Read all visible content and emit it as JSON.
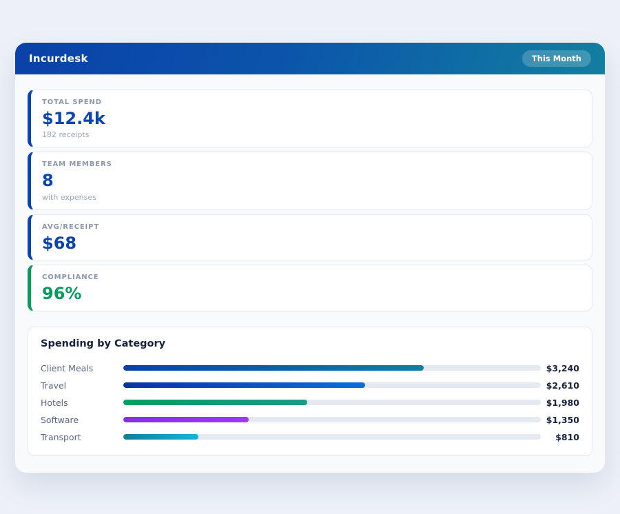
{
  "app": {
    "title": "Incurdesk",
    "period_badge": "This Month",
    "theme": {
      "header_gradient_start": "#0a41a8",
      "header_gradient_end": "#127f9f",
      "page_background": "#edf1f7",
      "panel_background": "#f8fafc",
      "accent_blue": "#0a44b0",
      "accent_green": "#089a5f"
    }
  },
  "stats": [
    {
      "label": "TOTAL SPEND",
      "value": "$12.4k",
      "subtitle": "182 receipts",
      "accent": "#0a44b0"
    },
    {
      "label": "TEAM MEMBERS",
      "value": "8",
      "subtitle": "with expenses",
      "accent": "#0a44b0"
    },
    {
      "label": "AVG/RECEIPT",
      "value": "$68",
      "subtitle": "",
      "accent": "#0a44b0"
    },
    {
      "label": "COMPLIANCE",
      "value": "96%",
      "subtitle": "",
      "accent": "#089a5f"
    }
  ],
  "chart_data": {
    "type": "bar",
    "orientation": "horizontal",
    "title": "Spending by Category",
    "categories": [
      "Client Meals",
      "Travel",
      "Hotels",
      "Software",
      "Transport"
    ],
    "values": [
      3240,
      2610,
      1980,
      1350,
      810
    ],
    "value_labels": [
      "$3,240",
      "$2,610",
      "$1,980",
      "$1,350",
      "$810"
    ],
    "scale_max": 4500,
    "bar_gradients": [
      [
        "#0a41a8",
        "#127f9f"
      ],
      [
        "#0a34a0",
        "#0a70d2"
      ],
      [
        "#009e60",
        "#1b9a8a"
      ],
      [
        "#8230dd",
        "#9d3bf2"
      ],
      [
        "#117e94",
        "#15b6d6"
      ]
    ],
    "track_color": "#e4e9f2"
  }
}
